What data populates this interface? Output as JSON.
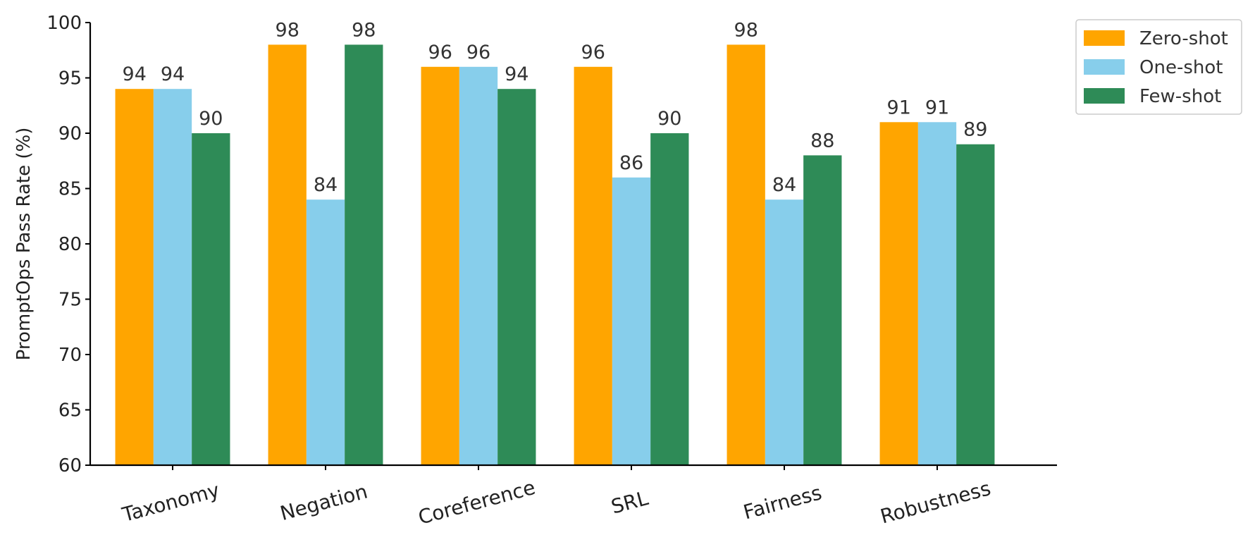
{
  "chart_data": {
    "type": "bar",
    "categories": [
      "Taxonomy",
      "Negation",
      "Coreference",
      "SRL",
      "Fairness",
      "Robustness"
    ],
    "series": [
      {
        "name": "Zero-shot",
        "color": "#FFA500",
        "values": [
          94,
          98,
          96,
          96,
          98,
          91
        ]
      },
      {
        "name": "One-shot",
        "color": "#87CEEB",
        "values": [
          94,
          84,
          96,
          86,
          84,
          91
        ]
      },
      {
        "name": "Few-shot",
        "color": "#2E8B57",
        "values": [
          90,
          98,
          94,
          90,
          88,
          89
        ]
      }
    ],
    "title": "",
    "xlabel": "",
    "ylabel": "PromptOps Pass Rate (%)",
    "ylim": [
      60,
      100
    ],
    "yticks": [
      60,
      65,
      70,
      75,
      80,
      85,
      90,
      95,
      100
    ],
    "grid": false,
    "legend_position": "top-right",
    "data_labels": true
  }
}
